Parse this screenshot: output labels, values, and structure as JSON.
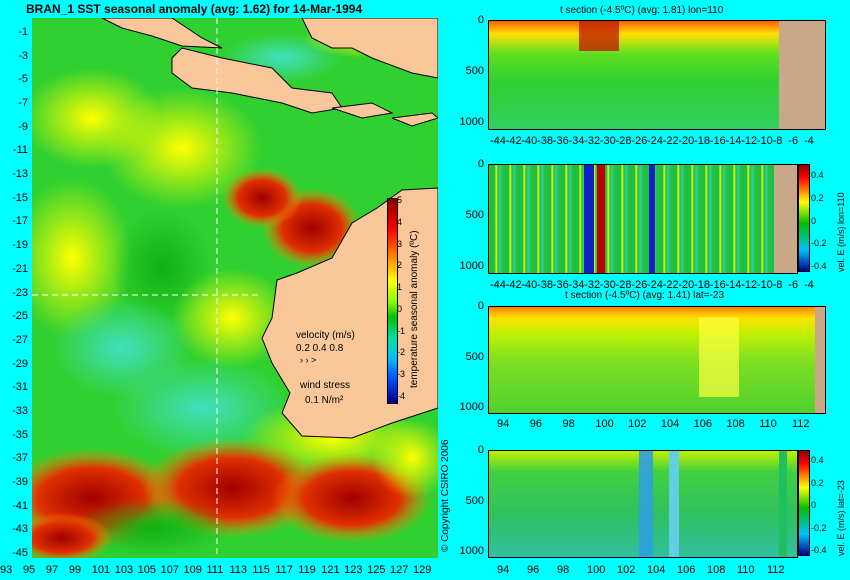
{
  "main_title": "BRAN_1 SST seasonal anomaly (avg: 1.62) for 14-Mar-1994",
  "copyright": "© Copyright CSIRO 2006",
  "colors": {
    "background": "#00ffff",
    "land": "#f9c79a",
    "section_land": "#c8a888"
  },
  "chart_data": [
    {
      "type": "heatmap",
      "id": "sst_map",
      "title": "BRAN_1 SST seasonal anomaly (avg: 1.62) for 14-Mar-1994",
      "x_ticks": [
        "93",
        "95",
        "97",
        "99",
        "101",
        "103",
        "105",
        "107",
        "109",
        "111",
        "113",
        "115",
        "117",
        "119",
        "121",
        "123",
        "125",
        "127",
        "129"
      ],
      "y_ticks": [
        "-1",
        "-3",
        "-5",
        "-7",
        "-9",
        "-11",
        "-13",
        "-15",
        "-17",
        "-19",
        "-21",
        "-23",
        "-25",
        "-27",
        "-29",
        "-31",
        "-33",
        "-35",
        "-37",
        "-39",
        "-41",
        "-43",
        "-45"
      ],
      "xlim": [
        93,
        130
      ],
      "ylim": [
        -45,
        0
      ],
      "colorbar": {
        "label": "temperature seasonal anomaly (ºC)",
        "ticks": [
          "5",
          "4",
          "3",
          "2",
          "1",
          "0",
          "-1",
          "-2",
          "-3",
          "-4"
        ],
        "range": [
          -4,
          5
        ]
      },
      "legend": {
        "velocity_label": "velocity (m/s)",
        "velocity_values": "0.2 0.4 0.8",
        "wind_label": "wind stress",
        "wind_value": "0.1 N/m²"
      }
    },
    {
      "type": "heatmap",
      "id": "t_section_lon",
      "title": "t section (-4.5ºC) (avg: 1.81) lon=110",
      "x_ticks": [
        "-44",
        "-42",
        "-40",
        "-38",
        "-36",
        "-34",
        "-32",
        "-30",
        "-28",
        "-26",
        "-24",
        "-22",
        "-20",
        "-18",
        "-16",
        "-14",
        "-12",
        "-10",
        "-8",
        "-6",
        "-4"
      ],
      "y_ticks": [
        "0",
        "500",
        "1000"
      ]
    },
    {
      "type": "heatmap",
      "id": "vel_section_lon",
      "x_ticks": [
        "-44",
        "-42",
        "-40",
        "-38",
        "-36",
        "-34",
        "-32",
        "-30",
        "-28",
        "-26",
        "-24",
        "-22",
        "-20",
        "-18",
        "-16",
        "-14",
        "-12",
        "-10",
        "-8",
        "-6",
        "-4"
      ],
      "y_ticks": [
        "0",
        "500",
        "1000"
      ],
      "colorbar": {
        "label": "vel. E (m/s) lon=110",
        "ticks": [
          "0.4",
          "0.2",
          "0",
          "-0.2",
          "-0.4"
        ]
      }
    },
    {
      "type": "heatmap",
      "id": "t_section_lat",
      "title": "t section (-4.5ºC) (avg: 1.41) lat=-23",
      "x_ticks": [
        "94",
        "96",
        "98",
        "100",
        "102",
        "104",
        "106",
        "108",
        "110",
        "112"
      ],
      "y_ticks": [
        "0",
        "500",
        "1000"
      ]
    },
    {
      "type": "heatmap",
      "id": "vel_section_lat",
      "x_ticks": [
        "94",
        "96",
        "98",
        "100",
        "102",
        "104",
        "106",
        "108",
        "110",
        "112"
      ],
      "y_ticks": [
        "0",
        "500",
        "1000"
      ],
      "colorbar": {
        "label": "vel. E (m/s) lat=-23",
        "ticks": [
          "0.4",
          "0.2",
          "0",
          "-0.2",
          "-0.4"
        ]
      }
    }
  ]
}
